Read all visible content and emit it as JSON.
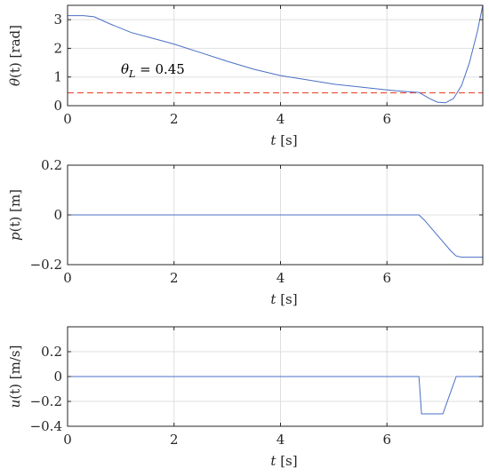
{
  "chart_data": [
    {
      "type": "line",
      "ylabel_symbol": "θ",
      "ylabel_rest": "(t) [rad]",
      "xlabel_symbol": "t",
      "xlabel_rest": " [s]",
      "xlim": [
        0,
        7.8
      ],
      "ylim": [
        0,
        3.5
      ],
      "xticks": [
        0,
        2,
        4,
        6
      ],
      "yticks": [
        0,
        1,
        2,
        3
      ],
      "grid": true,
      "series": [
        {
          "x": [
            0,
            0.3,
            0.5,
            0.8,
            1.2,
            1.6,
            2.0,
            2.5,
            3.0,
            3.5,
            4.0,
            4.5,
            5.0,
            5.5,
            6.0,
            6.3,
            6.6,
            6.8,
            6.95,
            7.1,
            7.25,
            7.4,
            7.55,
            7.7,
            7.8
          ],
          "y": [
            3.14,
            3.14,
            3.1,
            2.85,
            2.55,
            2.35,
            2.15,
            1.85,
            1.55,
            1.27,
            1.05,
            0.9,
            0.75,
            0.65,
            0.55,
            0.5,
            0.46,
            0.25,
            0.12,
            0.1,
            0.25,
            0.7,
            1.5,
            2.6,
            3.5
          ]
        }
      ],
      "reference_line": {
        "y": 0.45,
        "symbol": "θ",
        "subscript": "L",
        "label": "= 0.45",
        "color": "#e8553a"
      }
    },
    {
      "type": "line",
      "ylabel_symbol": "p",
      "ylabel_rest": "(t) [m]",
      "xlabel_symbol": "t",
      "xlabel_rest": " [s]",
      "xlim": [
        0,
        7.8
      ],
      "ylim": [
        -0.2,
        0.2
      ],
      "xticks": [
        0,
        2,
        4,
        6
      ],
      "yticks": [
        -0.2,
        0,
        0.2
      ],
      "ytick_labels": [
        "−0.2",
        "0",
        "0.2"
      ],
      "grid": true,
      "series": [
        {
          "x": [
            0,
            6.6,
            6.7,
            6.8,
            6.9,
            7.0,
            7.1,
            7.2,
            7.3,
            7.4,
            7.6,
            7.8
          ],
          "y": [
            0,
            0,
            -0.02,
            -0.045,
            -0.07,
            -0.095,
            -0.12,
            -0.145,
            -0.165,
            -0.17,
            -0.17,
            -0.17
          ]
        }
      ]
    },
    {
      "type": "line",
      "ylabel_symbol": "u",
      "ylabel_rest": "(t) [m/s]",
      "xlabel_symbol": "t",
      "xlabel_rest": " [s]",
      "xlim": [
        0,
        7.8
      ],
      "ylim": [
        -0.4,
        0.4
      ],
      "xticks": [
        0,
        2,
        4,
        6
      ],
      "yticks": [
        -0.4,
        -0.2,
        0,
        0.2
      ],
      "ytick_labels": [
        "−0.4",
        "−0.2",
        "0",
        "0.2"
      ],
      "grid": true,
      "series": [
        {
          "x": [
            0,
            6.6,
            6.65,
            7.05,
            7.3,
            7.8
          ],
          "y": [
            0,
            0,
            -0.3,
            -0.3,
            0,
            0
          ]
        }
      ]
    }
  ],
  "colors": {
    "series": "#4a6fc4",
    "reference": "#e8553a",
    "grid": "#dfdfdf",
    "axes": "#262626"
  }
}
